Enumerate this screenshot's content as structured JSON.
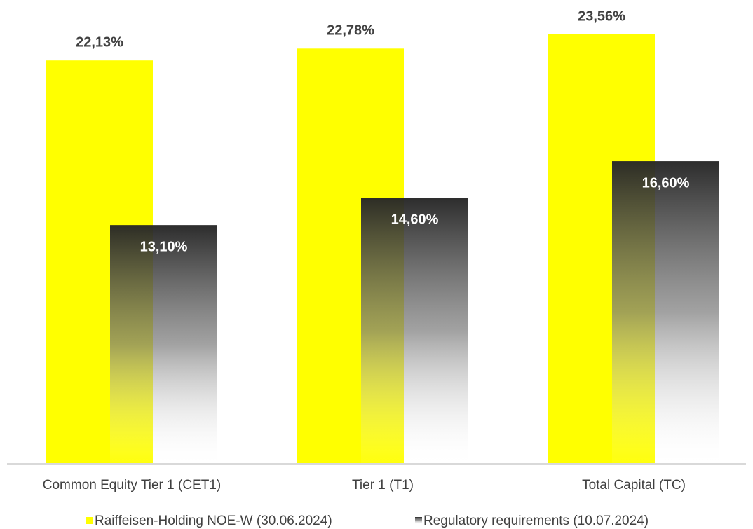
{
  "chart_data": {
    "type": "bar",
    "categories": [
      "Common Equity Tier 1 (CET1)",
      "Tier 1 (T1)",
      "Total Capital (TC)"
    ],
    "series": [
      {
        "name": "Raiffeisen-Holding NOE-W (30.06.2024)",
        "color": "#ffff00",
        "values": [
          22.13,
          22.78,
          23.56
        ],
        "value_labels": [
          "22,13%",
          "22,78%",
          "23,56%"
        ]
      },
      {
        "name": "Regulatory requirements (10.07.2024)",
        "color": "#2b2b2b",
        "values": [
          13.1,
          14.6,
          16.6
        ],
        "value_labels": [
          "13,10%",
          "14,60%",
          "16,60%"
        ]
      }
    ]
  }
}
